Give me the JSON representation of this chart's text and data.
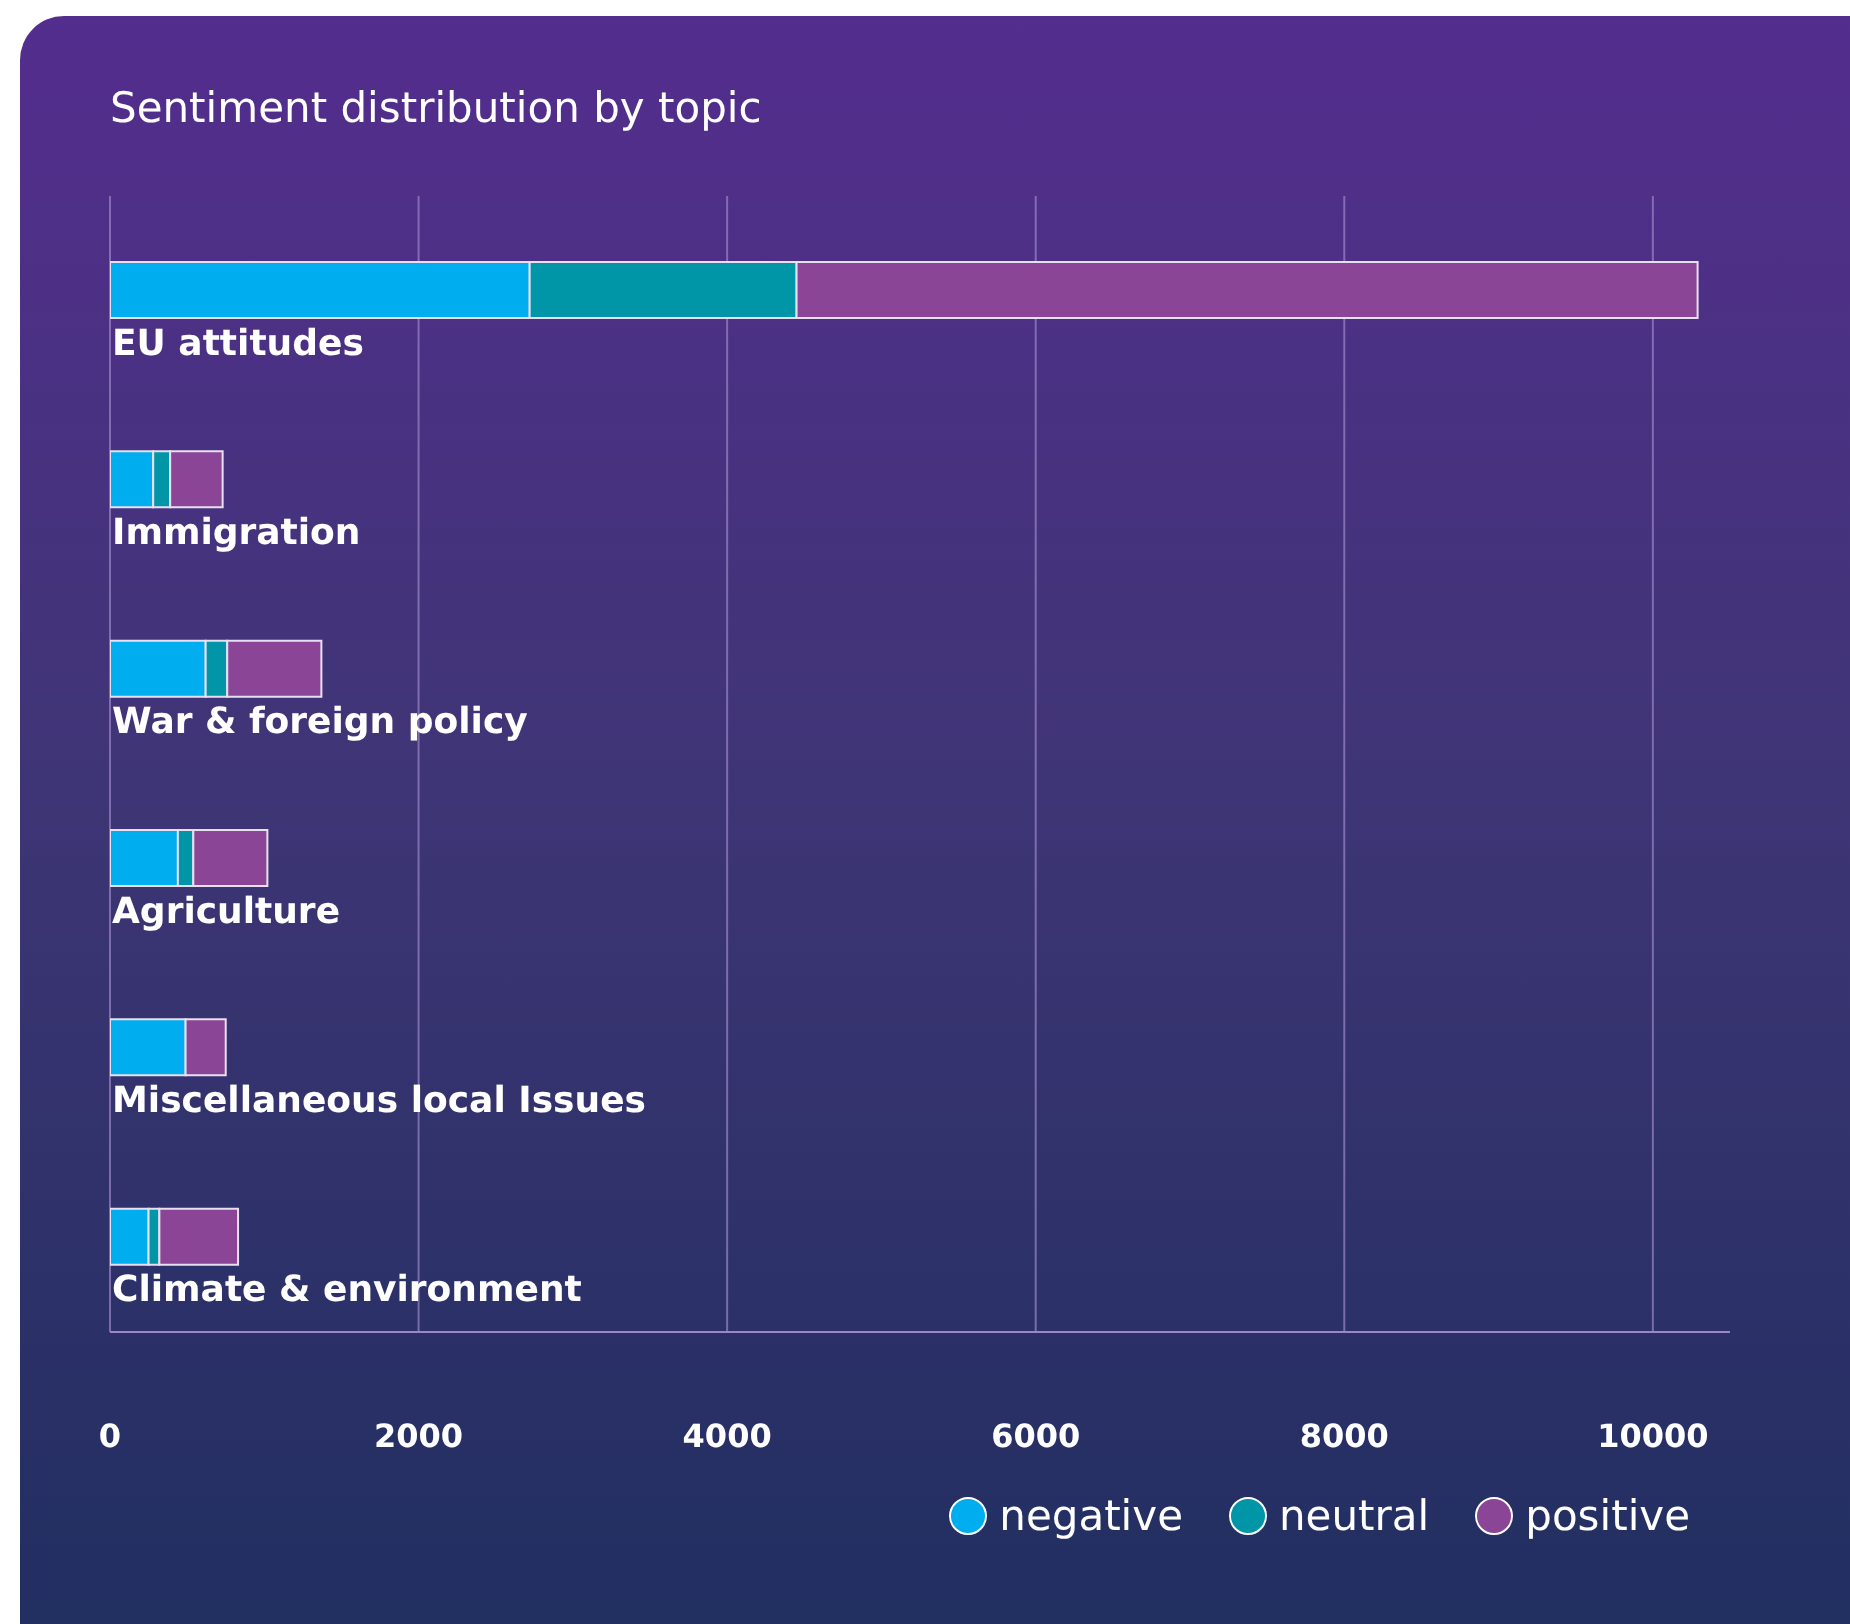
{
  "chart_data": {
    "type": "bar",
    "orientation": "horizontal",
    "stacked": true,
    "title": "Sentiment distribution by topic",
    "categories": [
      "EU attitudes",
      "Immigration",
      "War & foreign policy",
      "Agriculture",
      "Miscellaneous local Issues",
      "Climate & environment"
    ],
    "series": [
      {
        "name": "negative",
        "color": "#00aeef",
        "values": [
          2720,
          280,
          620,
          440,
          490,
          250
        ]
      },
      {
        "name": "neutral",
        "color": "#0096a8",
        "values": [
          1730,
          110,
          140,
          100,
          0,
          70
        ]
      },
      {
        "name": "positive",
        "color": "#8a4597",
        "values": [
          5840,
          340,
          610,
          480,
          260,
          510
        ]
      }
    ],
    "xlim": [
      0,
      10500
    ],
    "xticks": [
      0,
      2000,
      4000,
      6000,
      8000,
      10000
    ],
    "grid": "x",
    "legend": "bottom right"
  }
}
